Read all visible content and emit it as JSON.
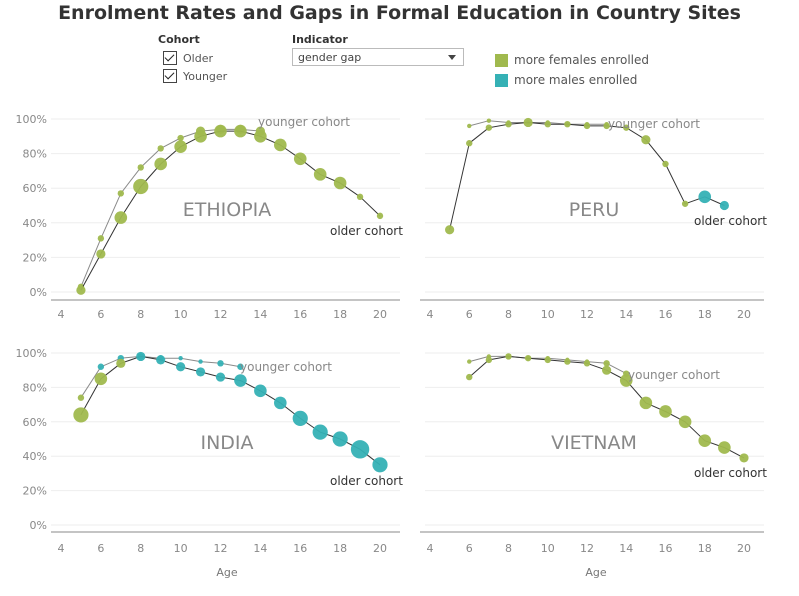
{
  "title": "Enrolment Rates and Gaps in Formal Education in Country Sites",
  "filters": {
    "cohort_label": "Cohort",
    "cohort_options": [
      {
        "label": "Older",
        "checked": true
      },
      {
        "label": "Younger",
        "checked": true
      }
    ],
    "indicator_label": "Indicator",
    "indicator_value": "gender gap"
  },
  "legend": {
    "items": [
      {
        "label": "more females enrolled",
        "color": "#a0b94e"
      },
      {
        "label": "more males enrolled",
        "color": "#35b1b5"
      }
    ]
  },
  "colors": {
    "female": "#a0b94e",
    "male": "#35b1b5",
    "older_line": "#333333",
    "younger_line": "#8a8a8a"
  },
  "chart_data": [
    {
      "type": "line",
      "country": "ETHIOPIA",
      "xlabel": "",
      "x_ticks": [
        4,
        6,
        8,
        10,
        12,
        14,
        16,
        18,
        20
      ],
      "y_ticks": [
        "0%",
        "20%",
        "40%",
        "60%",
        "80%",
        "100%"
      ],
      "xlim": [
        4,
        20
      ],
      "ylim": [
        0,
        1
      ],
      "grid": true,
      "series": [
        {
          "name": "older cohort",
          "x": [
            5,
            6,
            7,
            8,
            9,
            10,
            11,
            12,
            13,
            14,
            15,
            16,
            17,
            18,
            19,
            20
          ],
          "y": [
            0.01,
            0.22,
            0.43,
            0.61,
            0.74,
            0.84,
            0.9,
            0.93,
            0.93,
            0.9,
            0.85,
            0.77,
            0.68,
            0.63,
            0.55,
            0.44
          ],
          "gap": [
            "f",
            "f",
            "f",
            "f",
            "f",
            "f",
            "f",
            "f",
            "f",
            "f",
            "f",
            "f",
            "f",
            "f",
            "f",
            "f"
          ],
          "size": [
            2,
            2,
            3,
            4,
            3,
            3,
            3,
            3,
            3,
            3,
            3,
            3,
            3,
            3,
            1,
            1
          ]
        },
        {
          "name": "younger cohort",
          "x": [
            5,
            6,
            7,
            8,
            9,
            10,
            11,
            12,
            13,
            14
          ],
          "y": [
            0.03,
            0.31,
            0.57,
            0.72,
            0.83,
            0.89,
            0.93,
            0.94,
            0.94,
            0.93
          ],
          "gap": [
            "f",
            "f",
            "f",
            "f",
            "f",
            "f",
            "f",
            "f",
            "f",
            "f"
          ],
          "size": [
            1,
            1,
            1,
            1,
            1,
            1,
            2,
            2,
            2,
            2
          ]
        }
      ]
    },
    {
      "type": "line",
      "country": "PERU",
      "xlabel": "",
      "x_ticks": [
        4,
        6,
        8,
        10,
        12,
        14,
        16,
        18,
        20
      ],
      "y_ticks": [],
      "xlim": [
        4,
        20
      ],
      "ylim": [
        0,
        1
      ],
      "grid": true,
      "series": [
        {
          "name": "older cohort",
          "x": [
            5,
            6,
            7,
            8,
            9,
            10,
            11,
            12,
            13,
            14,
            15,
            16,
            17,
            18,
            19
          ],
          "y": [
            0.36,
            0.86,
            0.95,
            0.97,
            0.98,
            0.97,
            0.97,
            0.96,
            0.96,
            0.95,
            0.88,
            0.74,
            0.51,
            0.55,
            0.5
          ],
          "gap": [
            "f",
            "f",
            "f",
            "f",
            "f",
            "f",
            "f",
            "f",
            "f",
            "f",
            "f",
            "f",
            "f",
            "m",
            "m"
          ],
          "size": [
            2,
            1,
            1,
            1,
            2,
            1,
            1,
            1,
            1,
            1,
            2,
            1,
            1,
            3,
            2
          ]
        },
        {
          "name": "younger cohort",
          "x": [
            6,
            7,
            8,
            9,
            10,
            11,
            12,
            13
          ],
          "y": [
            0.96,
            0.99,
            0.98,
            0.98,
            0.98,
            0.97,
            0.97,
            0.97
          ],
          "gap": [
            "f",
            "f",
            "f",
            "f",
            "f",
            "f",
            "f",
            "f"
          ],
          "size": [
            0,
            0,
            0,
            0,
            0,
            0,
            0,
            0
          ]
        }
      ]
    },
    {
      "type": "line",
      "country": "INDIA",
      "xlabel": "Age",
      "x_ticks": [
        4,
        6,
        8,
        10,
        12,
        14,
        16,
        18,
        20
      ],
      "y_ticks": [
        "0%",
        "20%",
        "40%",
        "60%",
        "80%",
        "100%"
      ],
      "xlim": [
        4,
        20
      ],
      "ylim": [
        0,
        1
      ],
      "grid": true,
      "series": [
        {
          "name": "older cohort",
          "x": [
            5,
            6,
            7,
            8,
            9,
            10,
            11,
            12,
            13,
            14,
            15,
            16,
            17,
            18,
            19,
            20
          ],
          "y": [
            0.64,
            0.85,
            0.94,
            0.98,
            0.96,
            0.92,
            0.89,
            0.86,
            0.84,
            0.78,
            0.71,
            0.62,
            0.54,
            0.5,
            0.44,
            0.35
          ],
          "gap": [
            "f",
            "f",
            "f",
            "m",
            "m",
            "m",
            "m",
            "m",
            "m",
            "m",
            "m",
            "m",
            "m",
            "m",
            "m",
            "m"
          ],
          "size": [
            4,
            3,
            2,
            2,
            2,
            2,
            2,
            2,
            3,
            3,
            3,
            4,
            4,
            4,
            5,
            4
          ]
        },
        {
          "name": "younger cohort",
          "x": [
            5,
            6,
            7,
            8,
            9,
            10,
            11,
            12,
            13
          ],
          "y": [
            0.74,
            0.92,
            0.97,
            0.98,
            0.97,
            0.97,
            0.95,
            0.94,
            0.92
          ],
          "gap": [
            "f",
            "m",
            "m",
            "m",
            "m",
            "m",
            "m",
            "m",
            "m"
          ],
          "size": [
            1,
            1,
            1,
            1,
            1,
            0,
            0,
            1,
            1
          ]
        }
      ]
    },
    {
      "type": "line",
      "country": "VIETNAM",
      "xlabel": "Age",
      "x_ticks": [
        4,
        6,
        8,
        10,
        12,
        14,
        16,
        18,
        20
      ],
      "y_ticks": [],
      "xlim": [
        4,
        20
      ],
      "ylim": [
        0,
        1
      ],
      "grid": true,
      "series": [
        {
          "name": "older cohort",
          "x": [
            6,
            7,
            8,
            9,
            10,
            11,
            12,
            13,
            14,
            15,
            16,
            17,
            18,
            19,
            20
          ],
          "y": [
            0.86,
            0.96,
            0.98,
            0.97,
            0.96,
            0.95,
            0.94,
            0.9,
            0.84,
            0.71,
            0.66,
            0.6,
            0.49,
            0.45,
            0.39
          ],
          "gap": [
            "f",
            "f",
            "f",
            "f",
            "f",
            "f",
            "f",
            "f",
            "f",
            "f",
            "f",
            "f",
            "f",
            "f",
            "f"
          ],
          "size": [
            1,
            1,
            1,
            1,
            1,
            1,
            1,
            2,
            3,
            3,
            3,
            3,
            3,
            3,
            2
          ]
        },
        {
          "name": "younger cohort",
          "x": [
            6,
            7,
            8,
            9,
            10,
            11,
            12,
            13,
            14
          ],
          "y": [
            0.95,
            0.98,
            0.98,
            0.97,
            0.97,
            0.96,
            0.95,
            0.94,
            0.88
          ],
          "gap": [
            "f",
            "f",
            "f",
            "f",
            "f",
            "f",
            "f",
            "f",
            "f"
          ],
          "size": [
            0,
            0,
            0,
            0,
            0,
            0,
            0,
            1,
            1
          ]
        }
      ]
    }
  ]
}
